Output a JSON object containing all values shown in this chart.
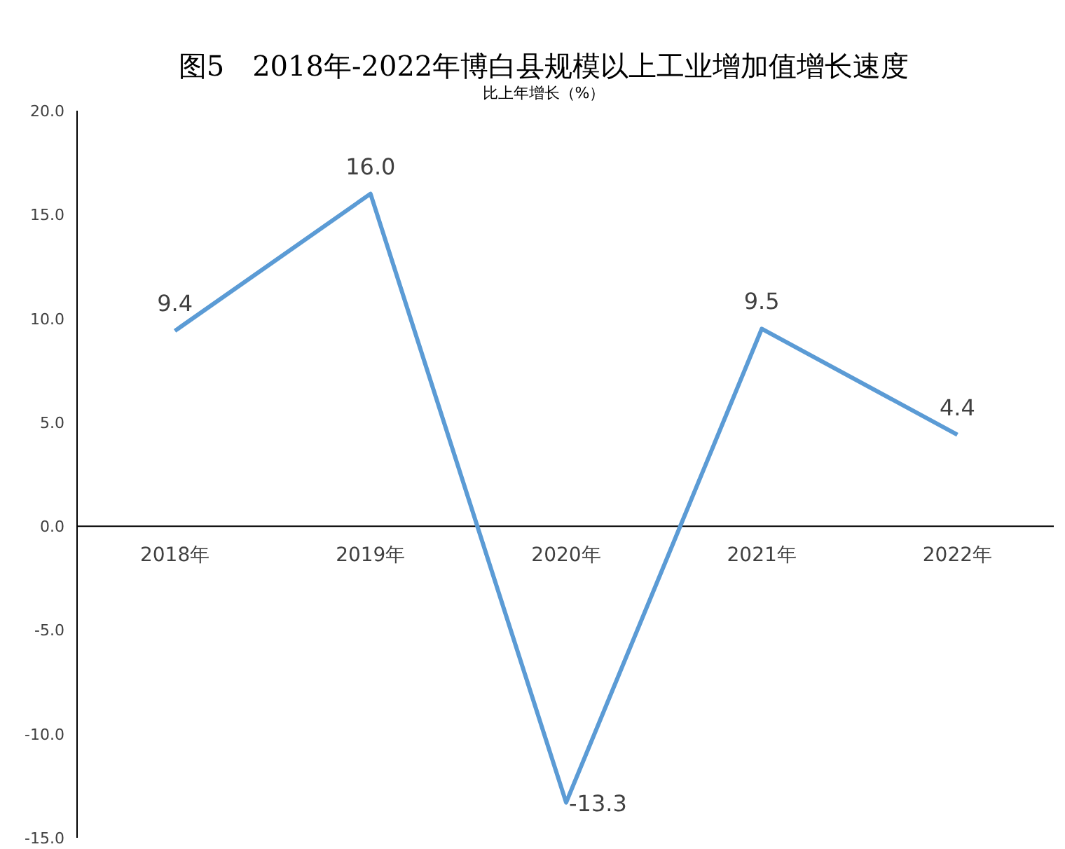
{
  "chart_data": {
    "type": "line",
    "title": "图5　2018年-2022年博白县规模以上工业增加值增长速度",
    "ylabel": "比上年增长（%）",
    "categories": [
      "2018年",
      "2019年",
      "2020年",
      "2021年",
      "2022年"
    ],
    "series": [
      {
        "color": "#5b9bd5",
        "values": [
          9.4,
          16.0,
          -13.3,
          9.5,
          4.4
        ],
        "value_labels": [
          "9.4",
          "16.0",
          "-13.3",
          "9.5",
          "4.4"
        ]
      }
    ],
    "ylim": [
      -15,
      20
    ],
    "yticks": [
      {
        "value": -15,
        "label": "-15.0"
      },
      {
        "value": -10,
        "label": "-10.0"
      },
      {
        "value": -5,
        "label": "-5.0"
      },
      {
        "value": 0,
        "label": "0.0"
      },
      {
        "value": 5,
        "label": "5.0"
      },
      {
        "value": 10,
        "label": "10.0"
      },
      {
        "value": 15,
        "label": "15.0"
      },
      {
        "value": 20,
        "label": "20.0"
      }
    ],
    "grid": false,
    "marker": "none",
    "line_style": "solid"
  }
}
